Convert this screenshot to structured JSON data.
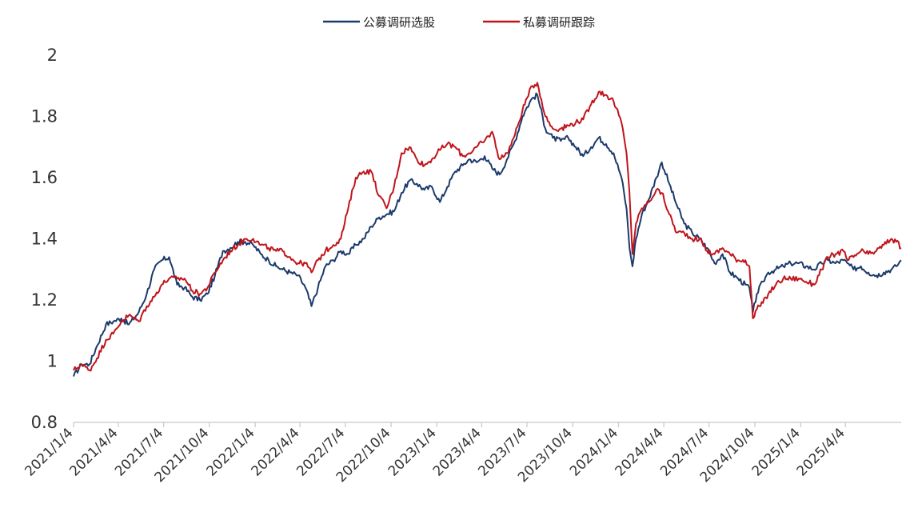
{
  "chart_data": {
    "type": "line",
    "title": "",
    "xlabel": "",
    "ylabel": "",
    "ylim": [
      0.8,
      2.0
    ],
    "yticks": [
      "0.8",
      "1",
      "1.2",
      "1.4",
      "1.6",
      "1.8",
      "2"
    ],
    "xlim": [
      "2021-01-04",
      "2025-07-25"
    ],
    "xticks": [
      "2021/1/4",
      "2021/4/4",
      "2021/7/4",
      "2021/10/4",
      "2022/1/4",
      "2022/4/4",
      "2022/7/4",
      "2022/10/4",
      "2023/1/4",
      "2023/4/4",
      "2023/7/4",
      "2023/10/4",
      "2024/1/4",
      "2024/4/4",
      "2024/7/4",
      "2024/10/4",
      "2025/1/4",
      "2025/4/4"
    ],
    "grid": false,
    "legend_position": "top-center",
    "series": [
      {
        "name": "公募调研选股",
        "color": "#1b3a6b",
        "points": [
          [
            "2021-01-04",
            0.95
          ],
          [
            "2021-01-20",
            0.99
          ],
          [
            "2021-02-05",
            0.99
          ],
          [
            "2021-02-20",
            1.05
          ],
          [
            "2021-03-10",
            1.12
          ],
          [
            "2021-03-25",
            1.13
          ],
          [
            "2021-04-10",
            1.14
          ],
          [
            "2021-04-25",
            1.12
          ],
          [
            "2021-05-15",
            1.16
          ],
          [
            "2021-05-31",
            1.22
          ],
          [
            "2021-06-15",
            1.3
          ],
          [
            "2021-06-30",
            1.33
          ],
          [
            "2021-07-15",
            1.34
          ],
          [
            "2021-07-31",
            1.25
          ],
          [
            "2021-08-15",
            1.24
          ],
          [
            "2021-08-31",
            1.21
          ],
          [
            "2021-09-15",
            1.2
          ],
          [
            "2021-09-30",
            1.22
          ],
          [
            "2021-10-15",
            1.28
          ],
          [
            "2021-10-31",
            1.36
          ],
          [
            "2021-11-15",
            1.37
          ],
          [
            "2021-11-30",
            1.39
          ],
          [
            "2021-12-15",
            1.39
          ],
          [
            "2021-12-31",
            1.38
          ],
          [
            "2022-01-15",
            1.35
          ],
          [
            "2022-01-31",
            1.33
          ],
          [
            "2022-02-15",
            1.31
          ],
          [
            "2022-02-28",
            1.3
          ],
          [
            "2022-03-15",
            1.29
          ],
          [
            "2022-03-31",
            1.28
          ],
          [
            "2022-04-15",
            1.24
          ],
          [
            "2022-04-27",
            1.18
          ],
          [
            "2022-05-10",
            1.24
          ],
          [
            "2022-05-25",
            1.31
          ],
          [
            "2022-06-10",
            1.33
          ],
          [
            "2022-06-25",
            1.36
          ],
          [
            "2022-07-10",
            1.35
          ],
          [
            "2022-07-25",
            1.38
          ],
          [
            "2022-08-10",
            1.4
          ],
          [
            "2022-08-25",
            1.44
          ],
          [
            "2022-09-10",
            1.47
          ],
          [
            "2022-09-25",
            1.48
          ],
          [
            "2022-10-10",
            1.49
          ],
          [
            "2022-10-25",
            1.55
          ],
          [
            "2022-11-10",
            1.59
          ],
          [
            "2022-11-25",
            1.58
          ],
          [
            "2022-12-10",
            1.56
          ],
          [
            "2022-12-25",
            1.57
          ],
          [
            "2023-01-10",
            1.52
          ],
          [
            "2023-01-25",
            1.57
          ],
          [
            "2023-02-10",
            1.62
          ],
          [
            "2023-02-25",
            1.64
          ],
          [
            "2023-03-10",
            1.66
          ],
          [
            "2023-03-25",
            1.65
          ],
          [
            "2023-04-10",
            1.67
          ],
          [
            "2023-04-25",
            1.63
          ],
          [
            "2023-05-10",
            1.61
          ],
          [
            "2023-05-25",
            1.66
          ],
          [
            "2023-06-10",
            1.72
          ],
          [
            "2023-06-25",
            1.8
          ],
          [
            "2023-07-04",
            1.83
          ],
          [
            "2023-07-15",
            1.86
          ],
          [
            "2023-07-25",
            1.87
          ],
          [
            "2023-08-10",
            1.76
          ],
          [
            "2023-08-25",
            1.73
          ],
          [
            "2023-09-10",
            1.72
          ],
          [
            "2023-09-25",
            1.73
          ],
          [
            "2023-10-10",
            1.7
          ],
          [
            "2023-10-25",
            1.67
          ],
          [
            "2023-11-10",
            1.7
          ],
          [
            "2023-11-25",
            1.73
          ],
          [
            "2023-12-10",
            1.71
          ],
          [
            "2023-12-25",
            1.68
          ],
          [
            "2024-01-10",
            1.6
          ],
          [
            "2024-01-20",
            1.5
          ],
          [
            "2024-01-26",
            1.37
          ],
          [
            "2024-02-01",
            1.31
          ],
          [
            "2024-02-08",
            1.4
          ],
          [
            "2024-02-20",
            1.48
          ],
          [
            "2024-03-05",
            1.53
          ],
          [
            "2024-03-20",
            1.6
          ],
          [
            "2024-03-31",
            1.65
          ],
          [
            "2024-04-15",
            1.58
          ],
          [
            "2024-04-30",
            1.51
          ],
          [
            "2024-05-15",
            1.45
          ],
          [
            "2024-05-31",
            1.42
          ],
          [
            "2024-06-15",
            1.4
          ],
          [
            "2024-06-30",
            1.37
          ],
          [
            "2024-07-15",
            1.32
          ],
          [
            "2024-07-31",
            1.35
          ],
          [
            "2024-08-15",
            1.29
          ],
          [
            "2024-08-31",
            1.27
          ],
          [
            "2024-09-15",
            1.25
          ],
          [
            "2024-09-23",
            1.24
          ],
          [
            "2024-09-30",
            1.16
          ],
          [
            "2024-10-08",
            1.22
          ],
          [
            "2024-10-20",
            1.26
          ],
          [
            "2024-10-31",
            1.29
          ],
          [
            "2024-11-15",
            1.3
          ],
          [
            "2024-11-30",
            1.31
          ],
          [
            "2024-12-15",
            1.32
          ],
          [
            "2024-12-31",
            1.32
          ],
          [
            "2025-01-15",
            1.31
          ],
          [
            "2025-01-31",
            1.3
          ],
          [
            "2025-02-15",
            1.32
          ],
          [
            "2025-02-28",
            1.33
          ],
          [
            "2025-03-15",
            1.32
          ],
          [
            "2025-03-31",
            1.33
          ],
          [
            "2025-04-08",
            1.32
          ],
          [
            "2025-04-20",
            1.3
          ],
          [
            "2025-05-05",
            1.31
          ],
          [
            "2025-05-20",
            1.29
          ],
          [
            "2025-06-05",
            1.28
          ],
          [
            "2025-06-20",
            1.29
          ],
          [
            "2025-07-05",
            1.3
          ],
          [
            "2025-07-15",
            1.31
          ],
          [
            "2025-07-25",
            1.33
          ]
        ]
      },
      {
        "name": "私募调研跟踪",
        "color": "#c0141b",
        "points": [
          [
            "2021-01-04",
            0.97
          ],
          [
            "2021-01-20",
            0.99
          ],
          [
            "2021-02-05",
            0.97
          ],
          [
            "2021-02-20",
            1.01
          ],
          [
            "2021-03-10",
            1.07
          ],
          [
            "2021-03-25",
            1.09
          ],
          [
            "2021-04-10",
            1.13
          ],
          [
            "2021-04-25",
            1.15
          ],
          [
            "2021-05-15",
            1.13
          ],
          [
            "2021-05-31",
            1.18
          ],
          [
            "2021-06-15",
            1.21
          ],
          [
            "2021-06-30",
            1.25
          ],
          [
            "2021-07-15",
            1.27
          ],
          [
            "2021-07-31",
            1.27
          ],
          [
            "2021-08-15",
            1.27
          ],
          [
            "2021-08-31",
            1.23
          ],
          [
            "2021-09-15",
            1.22
          ],
          [
            "2021-09-30",
            1.24
          ],
          [
            "2021-10-15",
            1.29
          ],
          [
            "2021-10-31",
            1.33
          ],
          [
            "2021-11-15",
            1.36
          ],
          [
            "2021-11-30",
            1.38
          ],
          [
            "2021-12-15",
            1.4
          ],
          [
            "2021-12-31",
            1.4
          ],
          [
            "2022-01-15",
            1.38
          ],
          [
            "2022-01-31",
            1.37
          ],
          [
            "2022-02-15",
            1.36
          ],
          [
            "2022-02-28",
            1.36
          ],
          [
            "2022-03-15",
            1.34
          ],
          [
            "2022-03-31",
            1.32
          ],
          [
            "2022-04-15",
            1.32
          ],
          [
            "2022-04-27",
            1.29
          ],
          [
            "2022-05-10",
            1.33
          ],
          [
            "2022-05-25",
            1.36
          ],
          [
            "2022-06-10",
            1.38
          ],
          [
            "2022-06-25",
            1.4
          ],
          [
            "2022-07-10",
            1.5
          ],
          [
            "2022-07-25",
            1.6
          ],
          [
            "2022-08-10",
            1.62
          ],
          [
            "2022-08-25",
            1.62
          ],
          [
            "2022-09-10",
            1.54
          ],
          [
            "2022-09-25",
            1.5
          ],
          [
            "2022-10-10",
            1.57
          ],
          [
            "2022-10-25",
            1.68
          ],
          [
            "2022-11-10",
            1.7
          ],
          [
            "2022-11-25",
            1.66
          ],
          [
            "2022-12-10",
            1.64
          ],
          [
            "2022-12-25",
            1.66
          ],
          [
            "2023-01-10",
            1.69
          ],
          [
            "2023-01-25",
            1.71
          ],
          [
            "2023-02-10",
            1.7
          ],
          [
            "2023-02-25",
            1.67
          ],
          [
            "2023-03-10",
            1.68
          ],
          [
            "2023-03-25",
            1.7
          ],
          [
            "2023-04-10",
            1.72
          ],
          [
            "2023-04-25",
            1.75
          ],
          [
            "2023-05-10",
            1.66
          ],
          [
            "2023-05-25",
            1.68
          ],
          [
            "2023-06-10",
            1.74
          ],
          [
            "2023-06-25",
            1.82
          ],
          [
            "2023-07-04",
            1.86
          ],
          [
            "2023-07-15",
            1.9
          ],
          [
            "2023-07-25",
            1.91
          ],
          [
            "2023-08-10",
            1.8
          ],
          [
            "2023-08-25",
            1.76
          ],
          [
            "2023-09-10",
            1.76
          ],
          [
            "2023-09-25",
            1.77
          ],
          [
            "2023-10-10",
            1.78
          ],
          [
            "2023-10-25",
            1.79
          ],
          [
            "2023-11-10",
            1.84
          ],
          [
            "2023-11-25",
            1.88
          ],
          [
            "2023-12-10",
            1.87
          ],
          [
            "2023-12-25",
            1.85
          ],
          [
            "2024-01-10",
            1.78
          ],
          [
            "2024-01-20",
            1.68
          ],
          [
            "2024-01-26",
            1.55
          ],
          [
            "2024-02-01",
            1.35
          ],
          [
            "2024-02-08",
            1.45
          ],
          [
            "2024-02-20",
            1.5
          ],
          [
            "2024-03-05",
            1.52
          ],
          [
            "2024-03-20",
            1.56
          ],
          [
            "2024-03-31",
            1.55
          ],
          [
            "2024-04-15",
            1.48
          ],
          [
            "2024-04-30",
            1.42
          ],
          [
            "2024-05-15",
            1.42
          ],
          [
            "2024-05-31",
            1.4
          ],
          [
            "2024-06-15",
            1.4
          ],
          [
            "2024-06-30",
            1.36
          ],
          [
            "2024-07-15",
            1.35
          ],
          [
            "2024-07-31",
            1.37
          ],
          [
            "2024-08-15",
            1.35
          ],
          [
            "2024-08-31",
            1.33
          ],
          [
            "2024-09-15",
            1.33
          ],
          [
            "2024-09-23",
            1.31
          ],
          [
            "2024-09-30",
            1.14
          ],
          [
            "2024-10-08",
            1.17
          ],
          [
            "2024-10-20",
            1.19
          ],
          [
            "2024-10-31",
            1.22
          ],
          [
            "2024-11-15",
            1.25
          ],
          [
            "2024-11-30",
            1.27
          ],
          [
            "2024-12-15",
            1.27
          ],
          [
            "2024-12-31",
            1.27
          ],
          [
            "2025-01-15",
            1.26
          ],
          [
            "2025-01-31",
            1.25
          ],
          [
            "2025-02-15",
            1.3
          ],
          [
            "2025-02-28",
            1.34
          ],
          [
            "2025-03-15",
            1.35
          ],
          [
            "2025-03-31",
            1.36
          ],
          [
            "2025-04-08",
            1.33
          ],
          [
            "2025-04-20",
            1.34
          ],
          [
            "2025-05-05",
            1.36
          ],
          [
            "2025-05-20",
            1.35
          ],
          [
            "2025-06-05",
            1.36
          ],
          [
            "2025-06-20",
            1.38
          ],
          [
            "2025-07-05",
            1.4
          ],
          [
            "2025-07-15",
            1.39
          ],
          [
            "2025-07-25",
            1.37
          ]
        ]
      }
    ]
  }
}
